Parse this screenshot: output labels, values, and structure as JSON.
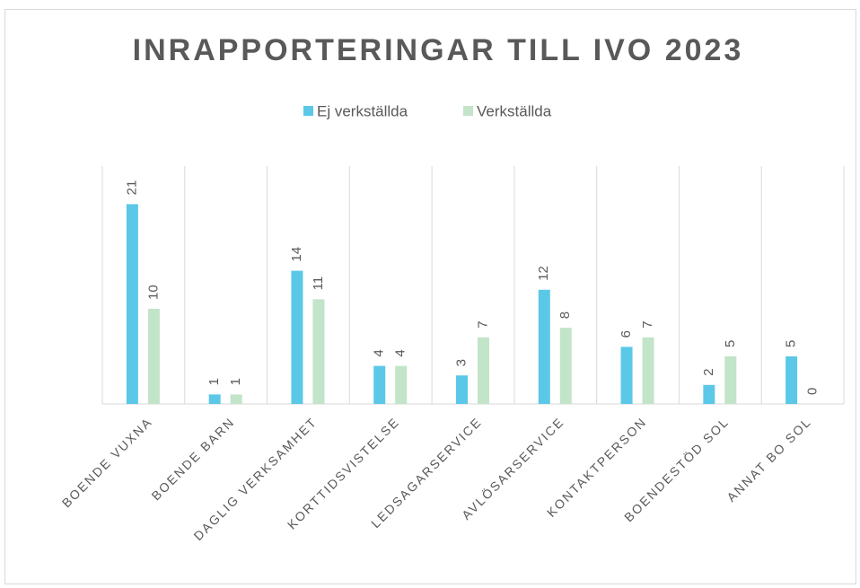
{
  "chart_data": {
    "type": "bar",
    "title": "INRAPPORTERINGAR TILL IVO 2023",
    "categories": [
      "BOENDE VUXNA",
      "BOENDE BARN",
      "DAGLIG VERKSAMHET",
      "KORTTIDSVISTELSE",
      "LEDSAGARSERVICE",
      "AVLÖSARSERVICE",
      "KONTAKTPERSON",
      "BOENDESTÖD SOL",
      "ANNAT BO SOL"
    ],
    "series": [
      {
        "name": "Ej verkställda",
        "color": "#5bc8e8",
        "values": [
          21,
          1,
          14,
          4,
          3,
          12,
          6,
          2,
          5
        ]
      },
      {
        "name": "Verkställda",
        "color": "#c2e4c8",
        "values": [
          10,
          1,
          11,
          4,
          7,
          8,
          7,
          5,
          0
        ]
      }
    ],
    "ylim": [
      0,
      25
    ],
    "legend": "top"
  }
}
